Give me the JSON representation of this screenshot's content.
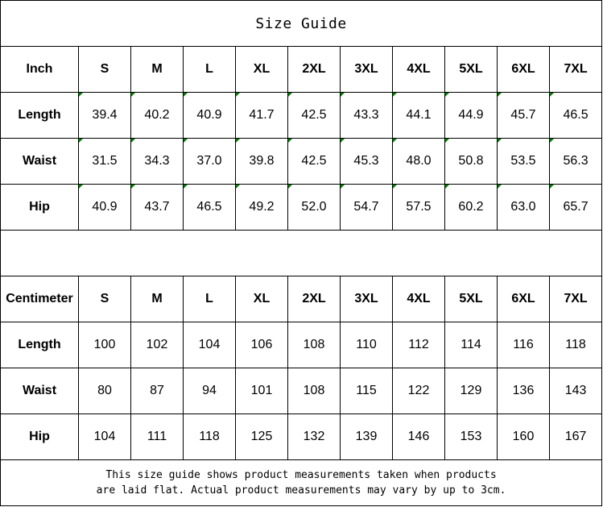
{
  "title": "Size Guide",
  "sizes": [
    "S",
    "M",
    "L",
    "XL",
    "2XL",
    "3XL",
    "4XL",
    "5XL",
    "6XL",
    "7XL"
  ],
  "inch": {
    "label": "Inch",
    "rows": [
      {
        "label": "Length",
        "values": [
          "39.4",
          "40.2",
          "40.9",
          "41.7",
          "42.5",
          "43.3",
          "44.1",
          "44.9",
          "45.7",
          "46.5"
        ]
      },
      {
        "label": "Waist",
        "values": [
          "31.5",
          "34.3",
          "37.0",
          "39.8",
          "42.5",
          "45.3",
          "48.0",
          "50.8",
          "53.5",
          "56.3"
        ]
      },
      {
        "label": "Hip",
        "values": [
          "40.9",
          "43.7",
          "46.5",
          "49.2",
          "52.0",
          "54.7",
          "57.5",
          "60.2",
          "63.0",
          "65.7"
        ]
      }
    ]
  },
  "centimeter": {
    "label": "Centimeter",
    "rows": [
      {
        "label": "Length",
        "values": [
          "100",
          "102",
          "104",
          "106",
          "108",
          "110",
          "112",
          "114",
          "116",
          "118"
        ]
      },
      {
        "label": "Waist",
        "values": [
          "80",
          "87",
          "94",
          "101",
          "108",
          "115",
          "122",
          "129",
          "136",
          "143"
        ]
      },
      {
        "label": "Hip",
        "values": [
          "104",
          "111",
          "118",
          "125",
          "132",
          "139",
          "146",
          "153",
          "160",
          "167"
        ]
      }
    ]
  },
  "note_line1": "This size guide shows product measurements taken when products",
  "note_line2": "are laid flat. Actual product measurements may vary by up to 3cm.",
  "colors": {
    "cell_marker": "#008000",
    "border": "#000000"
  }
}
